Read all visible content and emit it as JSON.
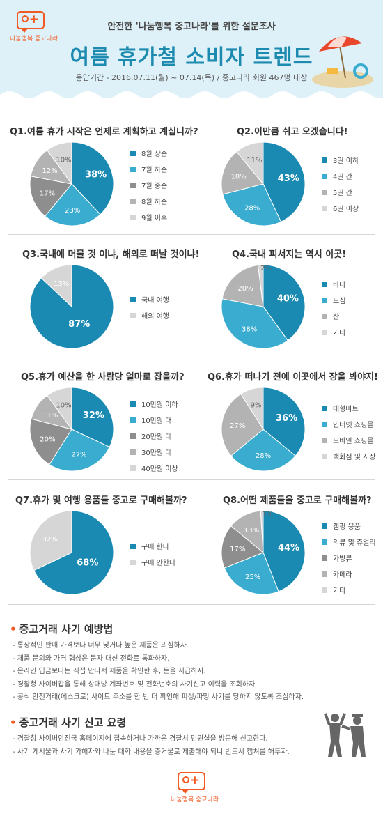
{
  "header": {
    "logo_text": "나눔행복 중고나라",
    "top_text": "안전한 '나눔행복 중고나라'를 위한 설문조사",
    "title": "여름 휴가철 소비자 트렌드",
    "subtitle": "응답기간 - 2016.07.11(월) ~ 07.14(목) / 중고나라 회원 467명 대상"
  },
  "colors": {
    "blue1": "#1a8ab3",
    "blue2": "#3aacd0",
    "gray1": "#8e8e8e",
    "gray2": "#b3b3b3",
    "gray3": "#d6d6d6"
  },
  "chart_data": [
    {
      "type": "pie",
      "title": "Q1.여름 휴가 시작은 언제로 계획하고 계십니까?",
      "labels": [
        "8월 상순",
        "7월 하순",
        "7월 중순",
        "8월 하순",
        "9월 이후"
      ],
      "values": [
        38,
        23,
        17,
        12,
        10
      ],
      "value_labels": [
        "38%",
        "23%",
        "17%",
        "12%",
        "10%"
      ]
    },
    {
      "type": "pie",
      "title": "Q2.이만큼 쉬고 오겠습니다!",
      "labels": [
        "3일 이하",
        "4일 간",
        "5일 간",
        "6일 이상"
      ],
      "values": [
        43,
        28,
        18,
        11
      ],
      "value_labels": [
        "43%",
        "28%",
        "18%",
        "11%"
      ]
    },
    {
      "type": "pie",
      "title": "Q3.국내에 머물 것 이냐, 해외로 떠날 것이냐!",
      "labels": [
        "국내 여행",
        "해외 여행"
      ],
      "values": [
        87,
        13
      ],
      "value_labels": [
        "87%",
        "13%"
      ]
    },
    {
      "type": "pie",
      "title": "Q4.국내 피서지는 역시 이곳!",
      "labels": [
        "바다",
        "도심",
        "산",
        "기타"
      ],
      "values": [
        40,
        38,
        20,
        2
      ],
      "value_labels": [
        "40%",
        "38%",
        "20%",
        "2%"
      ]
    },
    {
      "type": "pie",
      "title": "Q5.휴가 예산을 한 사람당 얼마로 잡을까?",
      "labels": [
        "10만원 이하",
        "10만원 대",
        "20만원 대",
        "30만원 대",
        "40만원 이상"
      ],
      "values": [
        32,
        27,
        20,
        11,
        10
      ],
      "value_labels": [
        "32%",
        "27%",
        "20%",
        "11%",
        "10%"
      ]
    },
    {
      "type": "pie",
      "title": "Q6.휴가 떠나기 전에 이곳에서 장을 봐야지!",
      "labels": [
        "대형마트",
        "인터넷 쇼핑몰",
        "모바일 쇼핑몰",
        "백화점 및 시장"
      ],
      "values": [
        36,
        28,
        27,
        9
      ],
      "value_labels": [
        "36%",
        "28%",
        "27%",
        "9%"
      ]
    },
    {
      "type": "pie",
      "title": "Q7.휴가 및 여행 용품들 중고로 구매해볼까?",
      "labels": [
        "구매 한다",
        "구매 안한다"
      ],
      "values": [
        68,
        32
      ],
      "value_labels": [
        "68%",
        "32%"
      ]
    },
    {
      "type": "pie",
      "title": "Q8.어떤 제품들을 중고로 구매해볼까?",
      "labels": [
        "캠핑 용품",
        "의류 및 쥬얼리",
        "가방류",
        "카메라",
        "기타"
      ],
      "values": [
        44,
        25,
        17,
        13,
        1
      ],
      "value_labels": [
        "44%",
        "25%",
        "17%",
        "13%",
        "1%"
      ]
    }
  ],
  "tips1": {
    "title": "중고거래 사기 예방법",
    "items": [
      "- 통상적인 판매 가격보다 너무 낮거나 높은 제품은 의심하자.",
      "- 제품 문의와 가격 협상은 문자 대신 전화로 통화하자.",
      "- 온라인 입금보다는 직접 만나서 제품을 확인한 후, 돈을 지급하자.",
      "- 경찰청 사이버캅을 통해 상대방 계좌번호 및 전화번호의 사기신고 이력을 조회하자.",
      "- 공식 안전거래(에스크로) 사이트 주소를 한 번 더 확인해 피싱/파밍 사기를 당하지 않도록 조심하자."
    ]
  },
  "tips2": {
    "title": "중고거래 사기 신고 요령",
    "items": [
      "- 경찰청 사이버안전국 홈페이지에 접속하거나 가까운 경찰서 민원실을 방문해 신고한다.",
      "- 사기 게시물과 사기 가해자와 나눈 대화 내용을 증거물로 제출해야 되니 반드시 캡쳐를 해두자."
    ]
  },
  "footer": {
    "logo_text": "나눔행복 중고나라"
  }
}
